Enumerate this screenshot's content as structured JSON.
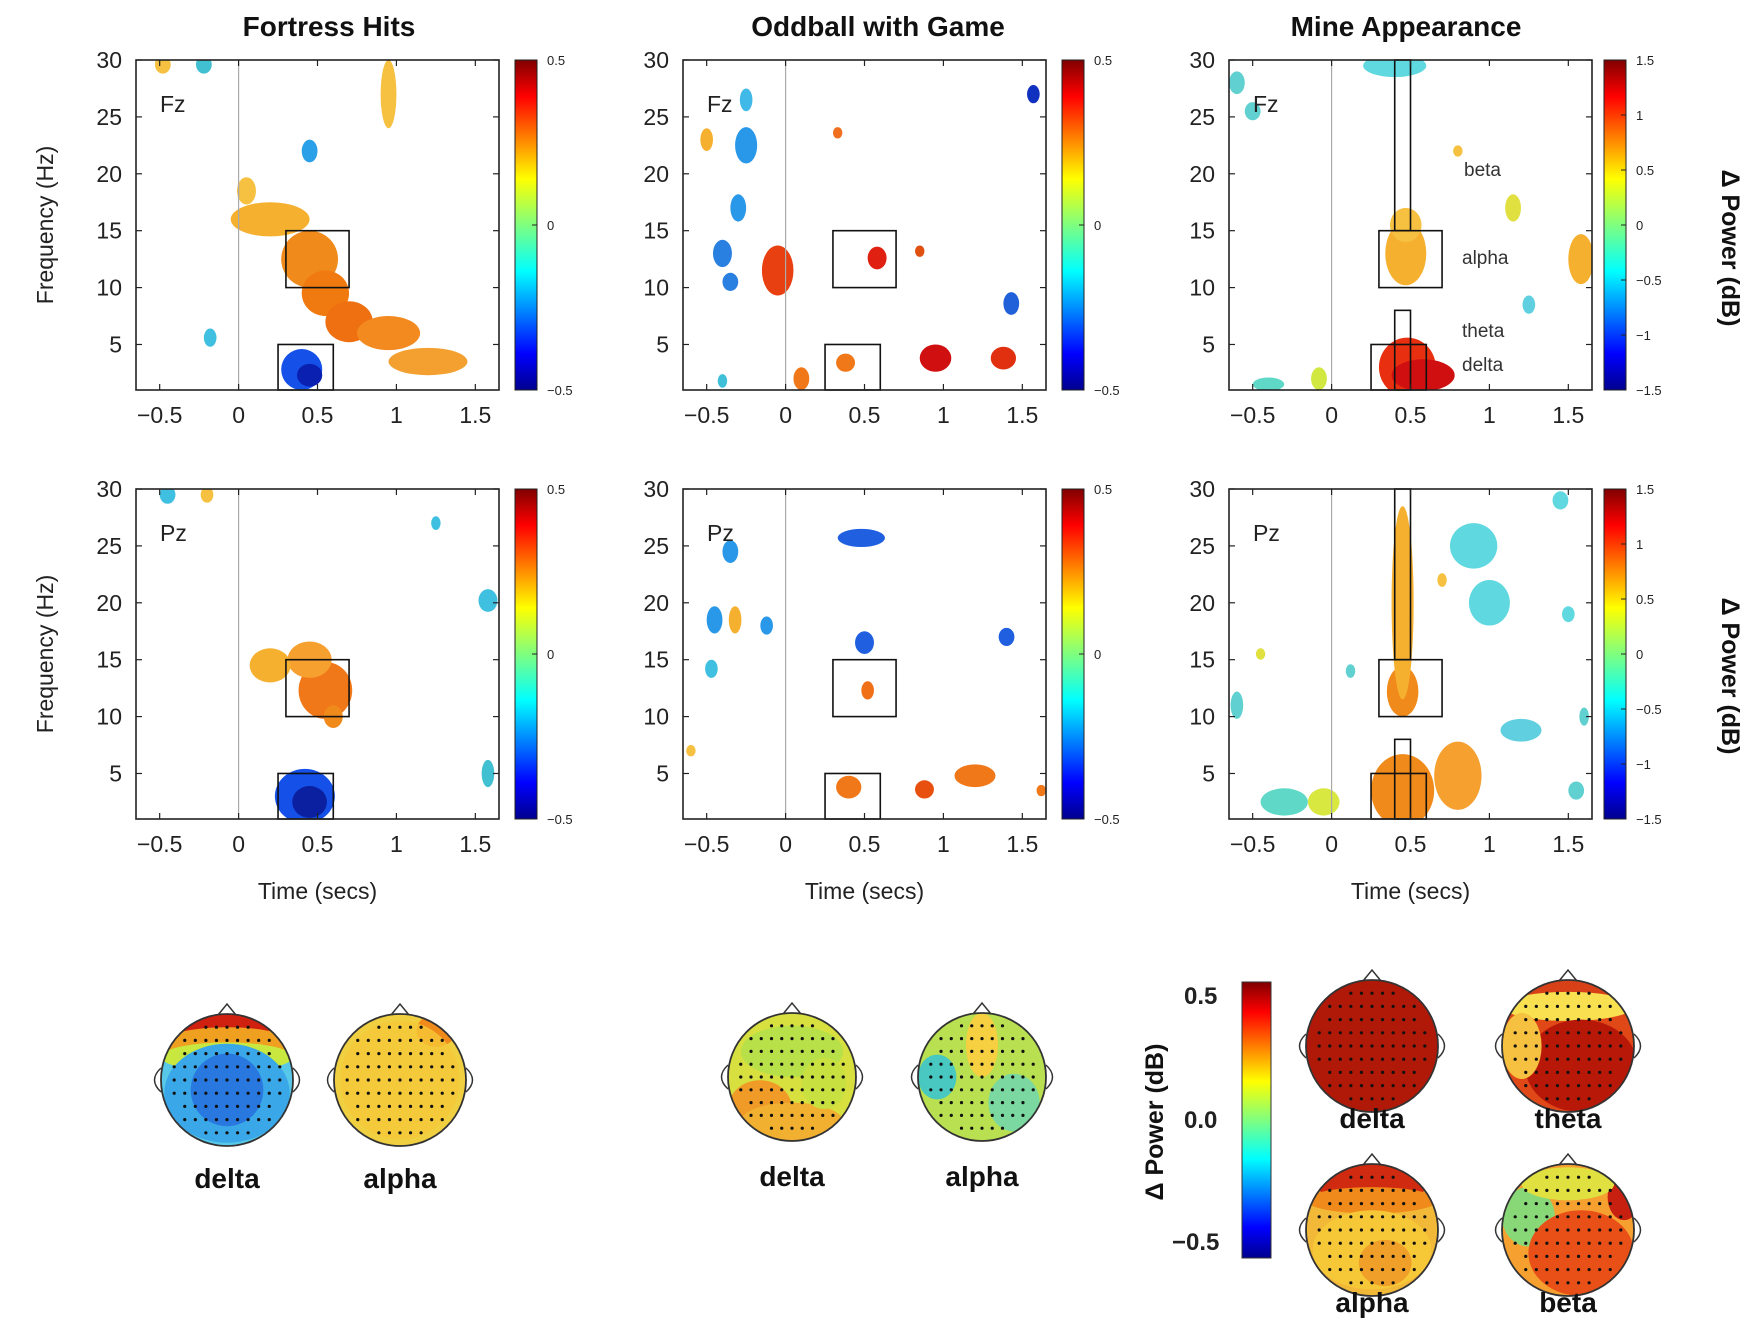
{
  "figure": {
    "column_titles": [
      "Fortress Hits",
      "Oddball with Game",
      "Mine Appearance"
    ],
    "row_channels": [
      "Fz",
      "Pz"
    ],
    "xlabel": "Time (secs)",
    "ylabel": "Frequency (Hz)",
    "colorbar_label": "Δ Power (dB)",
    "band_labels": {
      "beta": "beta",
      "alpha": "alpha",
      "theta": "theta",
      "delta": "delta"
    },
    "big_colorbar": {
      "label": "Δ Power (dB)",
      "ticks": [
        "0.5",
        "0.0",
        "−0.5"
      ]
    },
    "topomap_labels": {
      "fortress": [
        "delta",
        "alpha"
      ],
      "oddball": [
        "delta",
        "alpha"
      ],
      "mine": [
        "delta",
        "theta",
        "alpha",
        "beta"
      ]
    }
  },
  "chart_data": [
    {
      "type": "heatmap",
      "title": "Fortress Hits",
      "channel": "Fz",
      "xlabel": "",
      "ylabel": "Frequency (Hz)",
      "xlim": [
        -0.65,
        1.65
      ],
      "ylim": [
        1,
        30
      ],
      "xticks": [
        "−0.5",
        "0",
        "0.5",
        "1",
        "1.5"
      ],
      "yticks": [
        "5",
        "10",
        "15",
        "20",
        "25",
        "30"
      ],
      "clim": [
        -0.5,
        0.5
      ],
      "colorbar_ticks": [
        "0.5",
        "0",
        "−0.5"
      ]
    },
    {
      "type": "heatmap",
      "title": "Oddball with Game",
      "channel": "Fz",
      "xlabel": "",
      "ylabel": "",
      "xlim": [
        -0.65,
        1.65
      ],
      "ylim": [
        1,
        30
      ],
      "xticks": [
        "−0.5",
        "0",
        "0.5",
        "1",
        "1.5"
      ],
      "yticks": [
        "5",
        "10",
        "15",
        "20",
        "25",
        "30"
      ],
      "clim": [
        -0.5,
        0.5
      ],
      "colorbar_ticks": [
        "0.5",
        "0",
        "−0.5"
      ]
    },
    {
      "type": "heatmap",
      "title": "Mine Appearance",
      "channel": "Fz",
      "xlabel": "",
      "ylabel": "",
      "xlim": [
        -0.65,
        1.65
      ],
      "ylim": [
        1,
        30
      ],
      "xticks": [
        "−0.5",
        "0",
        "0.5",
        "1",
        "1.5"
      ],
      "yticks": [
        "5",
        "10",
        "15",
        "20",
        "25",
        "30"
      ],
      "clim": [
        -1.5,
        1.5
      ],
      "colorbar_ticks": [
        "1.5",
        "1",
        "0.5",
        "0",
        "−0.5",
        "−1",
        "−1.5"
      ]
    },
    {
      "type": "heatmap",
      "title": "",
      "channel": "Pz",
      "xlabel": "Time (secs)",
      "ylabel": "Frequency (Hz)",
      "xlim": [
        -0.65,
        1.65
      ],
      "ylim": [
        1,
        30
      ],
      "xticks": [
        "−0.5",
        "0",
        "0.5",
        "1",
        "1.5"
      ],
      "yticks": [
        "5",
        "10",
        "15",
        "20",
        "25",
        "30"
      ],
      "clim": [
        -0.5,
        0.5
      ],
      "colorbar_ticks": [
        "0.5",
        "0",
        "−0.5"
      ]
    },
    {
      "type": "heatmap",
      "title": "",
      "channel": "Pz",
      "xlabel": "Time (secs)",
      "ylabel": "",
      "xlim": [
        -0.65,
        1.65
      ],
      "ylim": [
        1,
        30
      ],
      "xticks": [
        "−0.5",
        "0",
        "0.5",
        "1",
        "1.5"
      ],
      "yticks": [
        "5",
        "10",
        "15",
        "20",
        "25",
        "30"
      ],
      "clim": [
        -0.5,
        0.5
      ],
      "colorbar_ticks": [
        "0.5",
        "0",
        "−0.5"
      ]
    },
    {
      "type": "heatmap",
      "title": "",
      "channel": "Pz",
      "xlabel": "Time (secs)",
      "ylabel": "",
      "xlim": [
        -0.65,
        1.65
      ],
      "ylim": [
        1,
        30
      ],
      "xticks": [
        "−0.5",
        "0",
        "0.5",
        "1",
        "1.5"
      ],
      "yticks": [
        "5",
        "10",
        "15",
        "20",
        "25",
        "30"
      ],
      "clim": [
        -1.5,
        1.5
      ],
      "colorbar_ticks": [
        "1.5",
        "1",
        "0.5",
        "0",
        "−0.5",
        "−1",
        "−1.5"
      ]
    }
  ]
}
